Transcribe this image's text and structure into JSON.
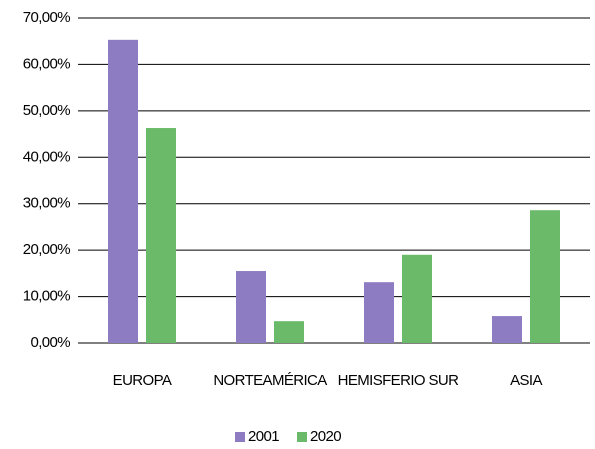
{
  "chart_data": {
    "type": "bar",
    "categories": [
      "EUROPA",
      "NORTEAMÉRICA",
      "HEMISFERIO SUR",
      "ASIA"
    ],
    "series": [
      {
        "name": "2001",
        "color": "#8e7cc3",
        "values": [
          65.3,
          15.5,
          13.1,
          5.8
        ]
      },
      {
        "name": "2020",
        "color": "#6aba6a",
        "values": [
          46.3,
          4.7,
          19.0,
          28.6
        ]
      }
    ],
    "ylim": [
      0,
      70
    ],
    "yticks": [
      {
        "value": 0,
        "label": "0,00%"
      },
      {
        "value": 10,
        "label": "10,00%"
      },
      {
        "value": 20,
        "label": "20,00%"
      },
      {
        "value": 30,
        "label": "30,00%"
      },
      {
        "value": 40,
        "label": "40,00%"
      },
      {
        "value": 50,
        "label": "50,00%"
      },
      {
        "value": 60,
        "label": "60,00%"
      },
      {
        "value": 70,
        "label": "70,00%"
      }
    ],
    "grid": true,
    "legend": "bottom"
  }
}
